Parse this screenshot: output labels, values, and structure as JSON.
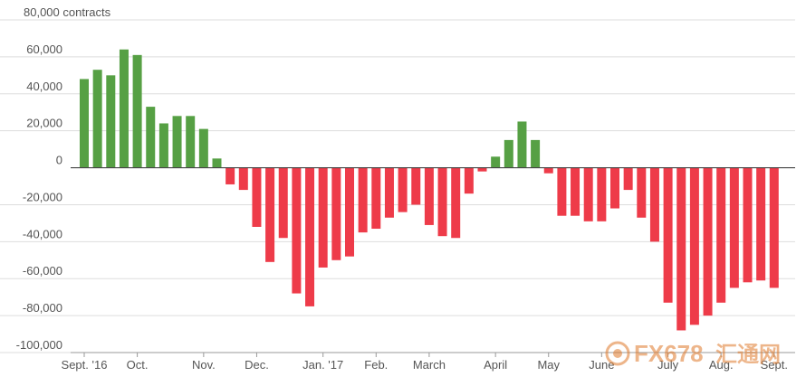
{
  "chart_data": {
    "type": "bar",
    "unit_label": "contracts",
    "ylim": [
      -100000,
      80000
    ],
    "y_ticks": [
      80000,
      60000,
      40000,
      20000,
      0,
      -20000,
      -40000,
      -60000,
      -80000,
      -100000
    ],
    "y_tick_labels": [
      "80,000 contracts",
      "60,000",
      "40,000",
      "20,000",
      "0",
      "-20,000",
      "-40,000",
      "-60,000",
      "-80,000",
      "-100,000"
    ],
    "grid": true,
    "x_labels": [
      "Sept. '16",
      "Oct.",
      "Nov.",
      "Dec.",
      "Jan. '17",
      "Feb.",
      "March",
      "April",
      "May",
      "June",
      "July",
      "Aug.",
      "Sept."
    ],
    "x_label_bar_index": [
      0,
      4,
      9,
      13,
      18,
      22,
      26,
      31,
      35,
      39,
      44,
      48,
      52
    ],
    "values": [
      48000,
      53000,
      50000,
      64000,
      61000,
      33000,
      24000,
      28000,
      28000,
      21000,
      5000,
      -9000,
      -12000,
      -32000,
      -51000,
      -38000,
      -68000,
      -75000,
      -54000,
      -50000,
      -48000,
      -35000,
      -33000,
      -27000,
      -24000,
      -20000,
      -31000,
      -37000,
      -38000,
      -14000,
      -2000,
      6000,
      15000,
      25000,
      15000,
      -3000,
      -26000,
      -26000,
      -29000,
      -29000,
      -22000,
      -12000,
      -27000,
      -40000,
      -73000,
      -88000,
      -85000,
      -80000,
      -73000,
      -65000,
      -62000,
      -61000,
      -65000
    ],
    "colors": {
      "positive": "#56a044",
      "negative": "#ee3b49",
      "grid": "#dddddd",
      "zero_line": "#444444",
      "axis": "#999999"
    }
  },
  "watermark": {
    "text": "FX678",
    "suffix": "汇通网",
    "color": "#e07a2b"
  }
}
